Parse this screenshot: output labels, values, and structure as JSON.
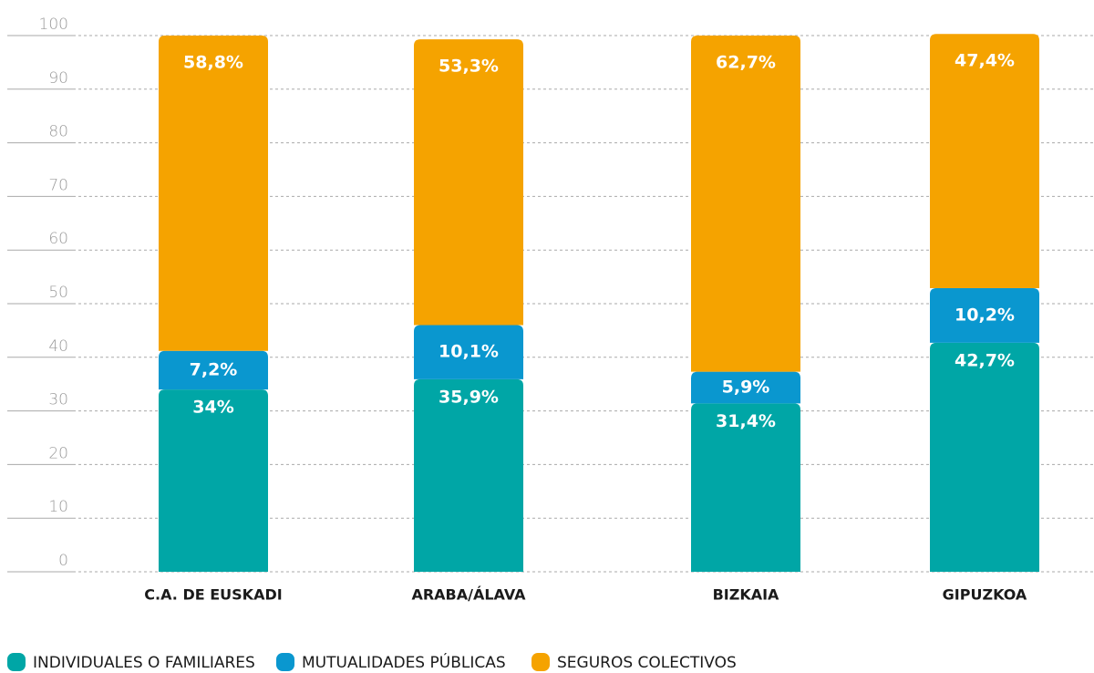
{
  "chart_data": {
    "type": "stacked_bar",
    "categories": [
      "C.A. DE EUSKADI",
      "ARABA/ÁLAVA",
      "BIZKAIA",
      "GIPUZKOA"
    ],
    "series": [
      {
        "name": "INDIVIDUALES O FAMILIARES",
        "color": "#00a6a6",
        "values": [
          34,
          35.9,
          31.4,
          42.7
        ],
        "value_labels": [
          "34%",
          "35,9%",
          "31,4%",
          "42,7%"
        ]
      },
      {
        "name": "MUTUALIDADES PÚBLICAS",
        "color": "#0a97cf",
        "values": [
          7.2,
          10.1,
          5.9,
          10.2
        ],
        "value_labels": [
          "7,2%",
          "10,1%",
          "5,9%",
          "10,2%"
        ]
      },
      {
        "name": "SEGUROS COLECTIVOS",
        "color": "#f5a300",
        "values": [
          58.8,
          53.3,
          62.7,
          47.4
        ],
        "value_labels": [
          "58,8%",
          "53,3%",
          "62,7%",
          "47,4%"
        ]
      }
    ],
    "ylim": [
      0,
      100
    ],
    "yticks": [
      0,
      10,
      20,
      30,
      40,
      50,
      60,
      70,
      80,
      90,
      100
    ],
    "grid": true,
    "legend": "bottom"
  }
}
